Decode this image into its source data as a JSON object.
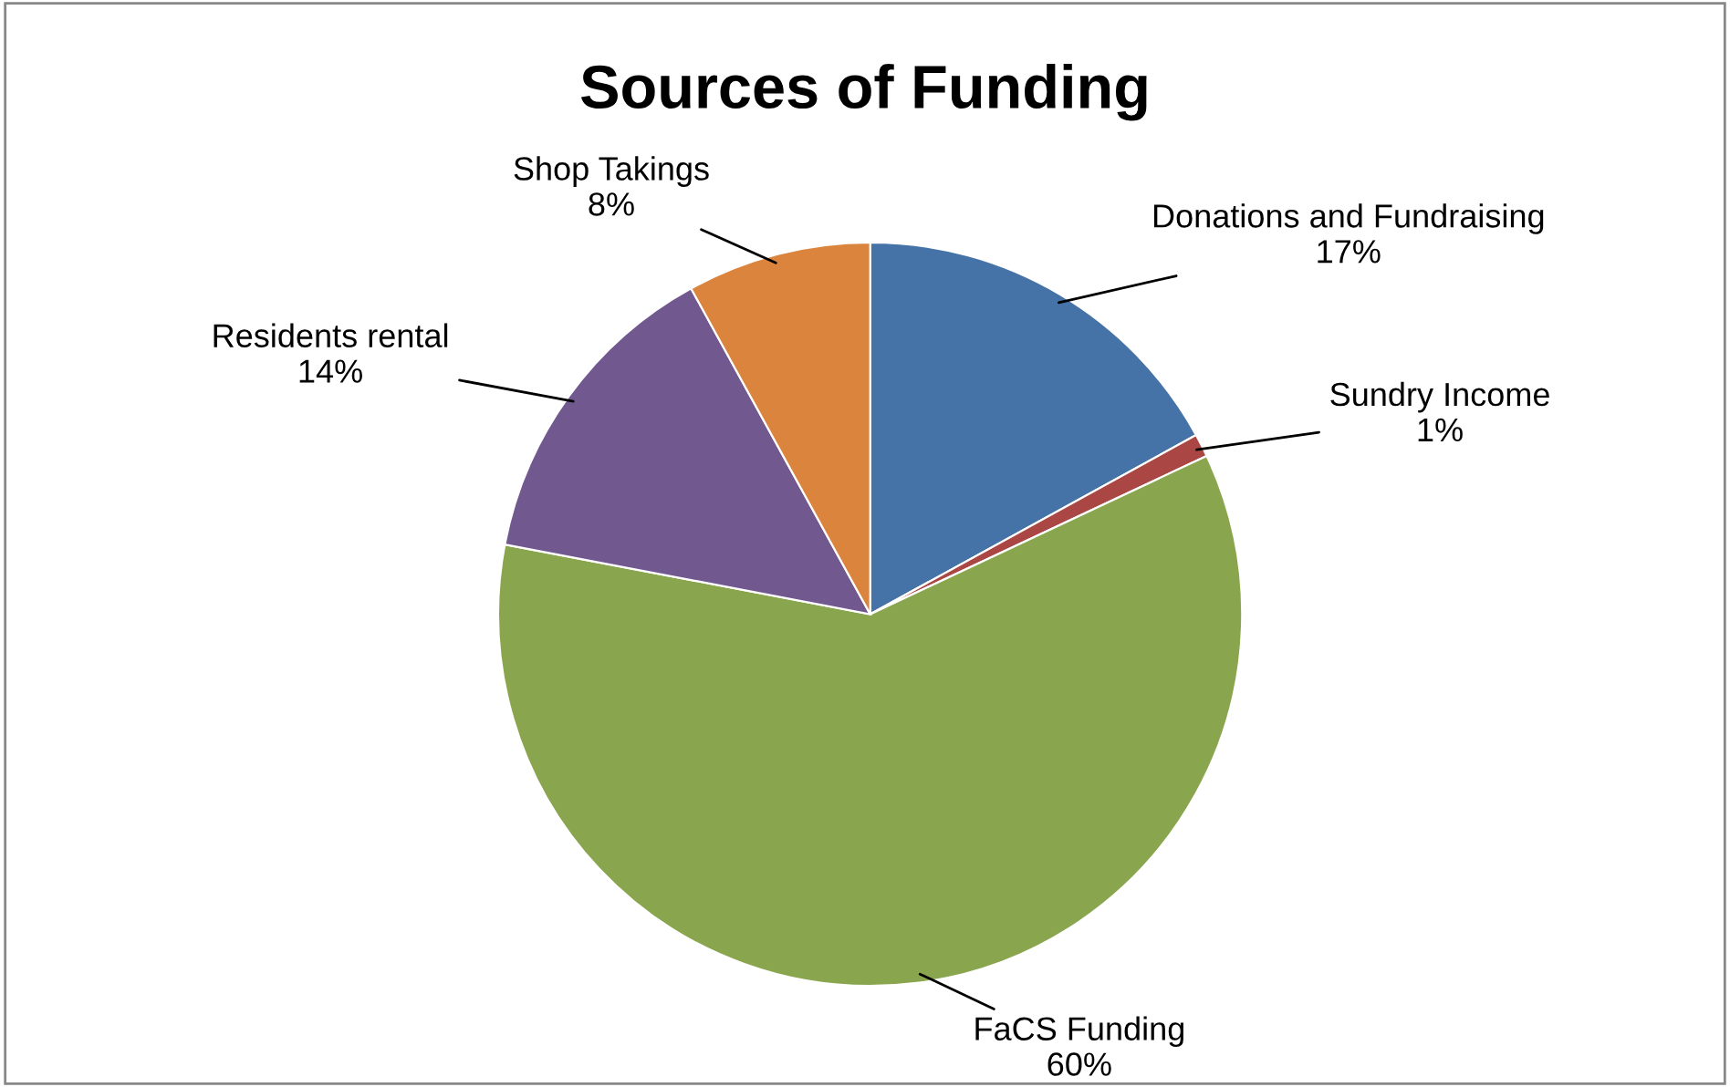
{
  "chart_data": {
    "type": "pie",
    "title": "Sources of Funding",
    "categories": [
      "Donations and Fundraising",
      "Sundry Income",
      "FaCS Funding",
      "Residents rental",
      "Shop Takings"
    ],
    "values": [
      17,
      1,
      60,
      14,
      8
    ],
    "colors": [
      "#4572a7",
      "#aa4643",
      "#89a54e",
      "#71588f",
      "#db843d"
    ],
    "value_labels": [
      "17%",
      "1%",
      "60%",
      "14%",
      "8%"
    ],
    "legend": false
  }
}
